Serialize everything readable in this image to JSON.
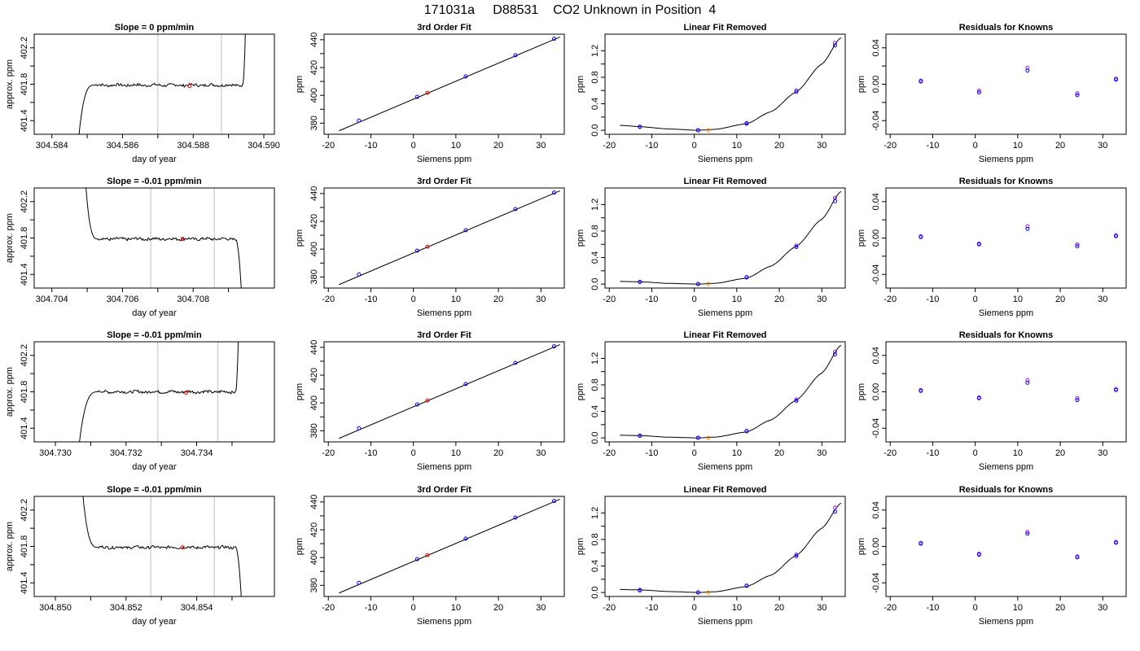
{
  "figure": {
    "title": "171031a     D88531    CO2 Unknown in Position  4"
  },
  "colors": {
    "line": "#000000",
    "known_points": "#0000ff",
    "known_points_alt": "#a020f0",
    "unknown_point": "#ff0000",
    "unknown_removed": "#ff8c00",
    "vlines": "#bebebe"
  },
  "chart_data": [
    {
      "row": 0,
      "col": 0,
      "type": "line",
      "title": "Slope =  0  ppm/min",
      "xlabel": "day of year",
      "ylabel": "approx. ppm",
      "xlim": [
        304.5835,
        304.5903
      ],
      "ylim": [
        401.25,
        402.35
      ],
      "xticks": [
        304.584,
        304.585,
        304.586,
        304.587,
        304.588,
        304.589,
        304.59
      ],
      "xtick_labels": [
        "304.584",
        "",
        "304.586",
        "",
        "304.588",
        "",
        "304.590"
      ],
      "yticks": [
        401.4,
        401.6,
        401.8,
        402.0,
        402.2
      ],
      "ytick_labels": [
        "401.4",
        "",
        "401.8",
        "",
        "402.2"
      ],
      "trace": {
        "start": 304.5847,
        "rise_end": 304.5852,
        "flat_end": 304.5894,
        "end": 304.5895,
        "level": 401.79,
        "direction": "up"
      },
      "vlines": [
        304.587,
        304.5888
      ],
      "marker": {
        "x": 304.5879,
        "y": 401.78
      }
    },
    {
      "row": 0,
      "col": 1,
      "type": "scatter",
      "title": "3rd Order Fit",
      "xlabel": "Siemens ppm",
      "ylabel": "ppm",
      "xlim": [
        -21,
        35.5
      ],
      "ylim": [
        372,
        444
      ],
      "xticks": [
        -20,
        -10,
        0,
        10,
        20,
        30
      ],
      "xtick_labels": [
        "-20",
        "-10",
        "0",
        "10",
        "20",
        "30"
      ],
      "yticks": [
        380,
        390,
        400,
        410,
        420,
        430,
        440
      ],
      "ytick_labels": [
        "380",
        "",
        "400",
        "",
        "420",
        "",
        "440"
      ],
      "line": {
        "x": [
          -17.5,
          34.5
        ],
        "y": [
          374.5,
          442
        ]
      },
      "knowns": {
        "x": [
          -12.8,
          0.9,
          12.3,
          24.0,
          33.1
        ],
        "y": [
          381.8,
          398.9,
          413.6,
          428.8,
          440.7
        ]
      },
      "unknown": {
        "x": 3.3,
        "y": 401.8
      }
    },
    {
      "row": 0,
      "col": 2,
      "type": "scatter",
      "title": "Linear Fit Removed",
      "xlabel": "Siemens ppm",
      "ylabel": "ppm",
      "xlim": [
        -21,
        35.5
      ],
      "ylim": [
        -0.06,
        1.45
      ],
      "xticks": [
        -20,
        -10,
        0,
        10,
        20,
        30
      ],
      "xtick_labels": [
        "-20",
        "-10",
        "0",
        "10",
        "20",
        "30"
      ],
      "yticks": [
        0,
        0.2,
        0.4,
        0.6,
        0.8,
        1.0,
        1.2
      ],
      "ytick_labels": [
        "0.0",
        "",
        "0.4",
        "",
        "0.8",
        "",
        "1.2"
      ],
      "curve": {
        "x": [
          -17.5,
          -12.8,
          -6,
          0.9,
          5,
          12.3,
          18,
          24.0,
          30,
          34.5
        ],
        "y": [
          0.075,
          0.055,
          0.02,
          0.0,
          0.015,
          0.1,
          0.28,
          0.58,
          1.0,
          1.4
        ]
      },
      "knowns": {
        "x": [
          -12.8,
          0.9,
          12.3,
          24.0,
          33.1
        ],
        "y": [
          0.05,
          0.0,
          0.1,
          0.58,
          1.28
        ],
        "y_alt": [
          0.055,
          0.003,
          0.11,
          0.6,
          1.32
        ]
      },
      "unknown": {
        "x": 3.3,
        "y": 0.0
      }
    },
    {
      "row": 0,
      "col": 3,
      "type": "scatter",
      "title": "Residuals for Knowns",
      "xlabel": "Siemens ppm",
      "ylabel": "ppm",
      "xlim": [
        -21,
        35.5
      ],
      "ylim": [
        -0.055,
        0.055
      ],
      "xticks": [
        -20,
        -10,
        0,
        10,
        20,
        30
      ],
      "xtick_labels": [
        "-20",
        "-10",
        "0",
        "10",
        "20",
        "30"
      ],
      "yticks": [
        -0.04,
        -0.02,
        0,
        0.02,
        0.04
      ],
      "ytick_labels": [
        "-0.04",
        "",
        "0.00",
        "",
        "0.04"
      ],
      "knowns": {
        "x": [
          -12.8,
          0.9,
          12.3,
          24.0,
          33.1
        ],
        "y": [
          0.003,
          -0.009,
          0.015,
          -0.012,
          0.005
        ],
        "y_alt": [
          0.004,
          -0.007,
          0.018,
          -0.01,
          0.006
        ]
      }
    },
    {
      "row": 1,
      "col": 0,
      "type": "line",
      "title": "Slope =  -0.01  ppm/min",
      "xlabel": "day of year",
      "ylabel": "approx. ppm",
      "xlim": [
        304.7035,
        304.7103
      ],
      "ylim": [
        401.25,
        402.35
      ],
      "xticks": [
        304.704,
        304.705,
        304.706,
        304.707,
        304.708,
        304.709
      ],
      "xtick_labels": [
        "304.704",
        "",
        "304.706",
        "",
        "304.708",
        ""
      ],
      "yticks": [
        401.4,
        401.6,
        401.8,
        402.0,
        402.2
      ],
      "ytick_labels": [
        "401.4",
        "",
        "401.8",
        "",
        "402.2"
      ],
      "trace": {
        "start": 304.7049,
        "rise_end": 304.7053,
        "flat_end": 304.7092,
        "end": 304.7094,
        "level": 401.79,
        "direction": "down"
      },
      "vlines": [
        304.7068,
        304.7086
      ],
      "marker": {
        "x": 304.7077,
        "y": 401.79
      }
    },
    {
      "row": 1,
      "col": 1,
      "type": "scatter",
      "title": "3rd Order Fit",
      "xlabel": "Siemens ppm",
      "ylabel": "ppm",
      "xlim": [
        -21,
        35.5
      ],
      "ylim": [
        372,
        444
      ],
      "xticks": [
        -20,
        -10,
        0,
        10,
        20,
        30
      ],
      "xtick_labels": [
        "-20",
        "-10",
        "0",
        "10",
        "20",
        "30"
      ],
      "yticks": [
        380,
        390,
        400,
        410,
        420,
        430,
        440
      ],
      "ytick_labels": [
        "380",
        "",
        "400",
        "",
        "420",
        "",
        "440"
      ],
      "line": {
        "x": [
          -17.5,
          34.5
        ],
        "y": [
          374.5,
          442
        ]
      },
      "knowns": {
        "x": [
          -12.8,
          0.9,
          12.3,
          24.0,
          33.1
        ],
        "y": [
          381.8,
          398.9,
          413.6,
          428.8,
          440.7
        ]
      },
      "unknown": {
        "x": 3.3,
        "y": 401.8
      }
    },
    {
      "row": 1,
      "col": 2,
      "type": "scatter",
      "title": "Linear Fit Removed",
      "xlabel": "Siemens ppm",
      "ylabel": "ppm",
      "xlim": [
        -21,
        35.5
      ],
      "ylim": [
        -0.06,
        1.45
      ],
      "xticks": [
        -20,
        -10,
        0,
        10,
        20,
        30
      ],
      "xtick_labels": [
        "-20",
        "-10",
        "0",
        "10",
        "20",
        "30"
      ],
      "yticks": [
        0,
        0.2,
        0.4,
        0.6,
        0.8,
        1.0,
        1.2
      ],
      "ytick_labels": [
        "0.0",
        "",
        "0.4",
        "",
        "0.8",
        "",
        "1.2"
      ],
      "curve": {
        "x": [
          -17.5,
          -12.8,
          -6,
          0.9,
          5,
          12.3,
          18,
          24.0,
          30,
          34.5
        ],
        "y": [
          0.04,
          0.035,
          0.01,
          0.0,
          0.012,
          0.09,
          0.27,
          0.57,
          0.98,
          1.4
        ]
      },
      "knowns": {
        "x": [
          -12.8,
          0.9,
          12.3,
          24.0,
          33.1
        ],
        "y": [
          0.03,
          0.0,
          0.1,
          0.56,
          1.25
        ],
        "y_alt": [
          0.035,
          0.003,
          0.105,
          0.58,
          1.3
        ]
      },
      "unknown": {
        "x": 3.3,
        "y": 0.0
      }
    },
    {
      "row": 1,
      "col": 3,
      "type": "scatter",
      "title": "Residuals for Knowns",
      "xlabel": "Siemens ppm",
      "ylabel": "ppm",
      "xlim": [
        -21,
        35.5
      ],
      "ylim": [
        -0.055,
        0.055
      ],
      "xticks": [
        -20,
        -10,
        0,
        10,
        20,
        30
      ],
      "xtick_labels": [
        "-20",
        "-10",
        "0",
        "10",
        "20",
        "30"
      ],
      "yticks": [
        -0.04,
        -0.02,
        0,
        0.02,
        0.04
      ],
      "ytick_labels": [
        "-0.04",
        "",
        "0.00",
        "",
        "0.04"
      ],
      "knowns": {
        "x": [
          -12.8,
          0.9,
          12.3,
          24.0,
          33.1
        ],
        "y": [
          0.001,
          -0.007,
          0.01,
          -0.009,
          0.002
        ],
        "y_alt": [
          0.002,
          -0.006,
          0.013,
          -0.007,
          0.003
        ]
      }
    },
    {
      "row": 2,
      "col": 0,
      "type": "line",
      "title": "Slope =  -0.01  ppm/min",
      "xlabel": "day of year",
      "ylabel": "approx. ppm",
      "xlim": [
        304.7294,
        304.7362
      ],
      "ylim": [
        401.25,
        402.35
      ],
      "xticks": [
        304.73,
        304.731,
        304.732,
        304.733,
        304.734,
        304.735
      ],
      "xtick_labels": [
        "304.730",
        "",
        "304.732",
        "",
        "304.734",
        ""
      ],
      "yticks": [
        401.4,
        401.6,
        401.8,
        402.0,
        402.2
      ],
      "ytick_labels": [
        "401.4",
        "",
        "401.8",
        "",
        "402.2"
      ],
      "trace": {
        "start": 304.7306,
        "rise_end": 304.7312,
        "flat_end": 304.7351,
        "end": 304.7352,
        "level": 401.8,
        "direction": "up"
      },
      "vlines": [
        304.7329,
        304.7346
      ],
      "marker": {
        "x": 304.7337,
        "y": 401.79
      }
    },
    {
      "row": 2,
      "col": 1,
      "type": "scatter",
      "title": "3rd Order Fit",
      "xlabel": "Siemens ppm",
      "ylabel": "ppm",
      "xlim": [
        -21,
        35.5
      ],
      "ylim": [
        372,
        444
      ],
      "xticks": [
        -20,
        -10,
        0,
        10,
        20,
        30
      ],
      "xtick_labels": [
        "-20",
        "-10",
        "0",
        "10",
        "20",
        "30"
      ],
      "yticks": [
        380,
        390,
        400,
        410,
        420,
        430,
        440
      ],
      "ytick_labels": [
        "380",
        "",
        "400",
        "",
        "420",
        "",
        "440"
      ],
      "line": {
        "x": [
          -17.5,
          34.5
        ],
        "y": [
          374.5,
          442
        ]
      },
      "knowns": {
        "x": [
          -12.8,
          0.9,
          12.3,
          24.0,
          33.1
        ],
        "y": [
          381.8,
          398.9,
          413.6,
          428.8,
          440.7
        ]
      },
      "unknown": {
        "x": 3.3,
        "y": 401.8
      }
    },
    {
      "row": 2,
      "col": 2,
      "type": "scatter",
      "title": "Linear Fit Removed",
      "xlabel": "Siemens ppm",
      "ylabel": "ppm",
      "xlim": [
        -21,
        35.5
      ],
      "ylim": [
        -0.06,
        1.45
      ],
      "xticks": [
        -20,
        -10,
        0,
        10,
        20,
        30
      ],
      "xtick_labels": [
        "-20",
        "-10",
        "0",
        "10",
        "20",
        "30"
      ],
      "yticks": [
        0,
        0.2,
        0.4,
        0.6,
        0.8,
        1.0,
        1.2
      ],
      "ytick_labels": [
        "0.0",
        "",
        "0.4",
        "",
        "0.8",
        "",
        "1.2"
      ],
      "curve": {
        "x": [
          -17.5,
          -12.8,
          -6,
          0.9,
          5,
          12.3,
          18,
          24.0,
          30,
          34.5
        ],
        "y": [
          0.04,
          0.035,
          0.01,
          0.0,
          0.012,
          0.09,
          0.27,
          0.57,
          0.98,
          1.4
        ]
      },
      "knowns": {
        "x": [
          -12.8,
          0.9,
          12.3,
          24.0,
          33.1
        ],
        "y": [
          0.03,
          0.0,
          0.1,
          0.56,
          1.26
        ],
        "y_alt": [
          0.035,
          0.003,
          0.105,
          0.58,
          1.3
        ]
      },
      "unknown": {
        "x": 3.3,
        "y": 0.0
      }
    },
    {
      "row": 2,
      "col": 3,
      "type": "scatter",
      "title": "Residuals for Knowns",
      "xlabel": "Siemens ppm",
      "ylabel": "ppm",
      "xlim": [
        -21,
        35.5
      ],
      "ylim": [
        -0.055,
        0.055
      ],
      "xticks": [
        -20,
        -10,
        0,
        10,
        20,
        30
      ],
      "xtick_labels": [
        "-20",
        "-10",
        "0",
        "10",
        "20",
        "30"
      ],
      "yticks": [
        -0.04,
        -0.02,
        0,
        0.02,
        0.04
      ],
      "ytick_labels": [
        "-0.04",
        "",
        "0.00",
        "",
        "0.04"
      ],
      "knowns": {
        "x": [
          -12.8,
          0.9,
          12.3,
          24.0,
          33.1
        ],
        "y": [
          0.001,
          -0.007,
          0.01,
          -0.009,
          0.002
        ],
        "y_alt": [
          0.002,
          -0.006,
          0.013,
          -0.007,
          0.003
        ]
      }
    },
    {
      "row": 3,
      "col": 0,
      "type": "line",
      "title": "Slope =  -0.01  ppm/min",
      "xlabel": "day of year",
      "ylabel": "approx. ppm",
      "xlim": [
        304.8494,
        304.8562
      ],
      "ylim": [
        401.25,
        402.35
      ],
      "xticks": [
        304.85,
        304.851,
        304.852,
        304.853,
        304.854,
        304.855
      ],
      "xtick_labels": [
        "304.850",
        "",
        "304.852",
        "",
        "304.854",
        ""
      ],
      "yticks": [
        401.4,
        401.6,
        401.8,
        402.0,
        402.2
      ],
      "ytick_labels": [
        "401.4",
        "",
        "401.8",
        "",
        "402.2"
      ],
      "trace": {
        "start": 304.8507,
        "rise_end": 304.8512,
        "flat_end": 304.8551,
        "end": 304.8553,
        "level": 401.79,
        "direction": "down"
      },
      "vlines": [
        304.8527,
        304.8545
      ],
      "marker": {
        "x": 304.8536,
        "y": 401.79
      }
    },
    {
      "row": 3,
      "col": 1,
      "type": "scatter",
      "title": "3rd Order Fit",
      "xlabel": "Siemens ppm",
      "ylabel": "ppm",
      "xlim": [
        -21,
        35.5
      ],
      "ylim": [
        372,
        444
      ],
      "xticks": [
        -20,
        -10,
        0,
        10,
        20,
        30
      ],
      "xtick_labels": [
        "-20",
        "-10",
        "0",
        "10",
        "20",
        "30"
      ],
      "yticks": [
        380,
        390,
        400,
        410,
        420,
        430,
        440
      ],
      "ytick_labels": [
        "380",
        "",
        "400",
        "",
        "420",
        "",
        "440"
      ],
      "line": {
        "x": [
          -17.5,
          34.5
        ],
        "y": [
          374.5,
          442
        ]
      },
      "knowns": {
        "x": [
          -12.8,
          0.9,
          12.3,
          24.0,
          33.1
        ],
        "y": [
          381.8,
          398.9,
          413.6,
          428.8,
          440.7
        ]
      },
      "unknown": {
        "x": 3.3,
        "y": 401.8
      }
    },
    {
      "row": 3,
      "col": 2,
      "type": "scatter",
      "title": "Linear Fit Removed",
      "xlabel": "Siemens ppm",
      "ylabel": "ppm",
      "xlim": [
        -21,
        35.5
      ],
      "ylim": [
        -0.06,
        1.45
      ],
      "xticks": [
        -20,
        -10,
        0,
        10,
        20,
        30
      ],
      "xtick_labels": [
        "-20",
        "-10",
        "0",
        "10",
        "20",
        "30"
      ],
      "yticks": [
        0,
        0.2,
        0.4,
        0.6,
        0.8,
        1.0,
        1.2
      ],
      "ytick_labels": [
        "0.0",
        "",
        "0.4",
        "",
        "0.8",
        "",
        "1.2"
      ],
      "curve": {
        "x": [
          -17.5,
          -12.8,
          -6,
          0.9,
          5,
          12.3,
          18,
          24.0,
          30,
          34.5
        ],
        "y": [
          0.045,
          0.04,
          0.015,
          0.0,
          0.012,
          0.09,
          0.26,
          0.56,
          0.97,
          1.35
        ]
      },
      "knowns": {
        "x": [
          -12.8,
          0.9,
          12.3,
          24.0,
          33.1
        ],
        "y": [
          0.03,
          0.0,
          0.1,
          0.55,
          1.22
        ],
        "y_alt": [
          0.04,
          0.003,
          0.105,
          0.57,
          1.28
        ]
      },
      "unknown": {
        "x": 3.3,
        "y": 0.0
      }
    },
    {
      "row": 3,
      "col": 3,
      "type": "scatter",
      "title": "Residuals for Knowns",
      "xlabel": "Siemens ppm",
      "ylabel": "ppm",
      "xlim": [
        -21,
        35.5
      ],
      "ylim": [
        -0.055,
        0.055
      ],
      "xticks": [
        -20,
        -10,
        0,
        10,
        20,
        30
      ],
      "xtick_labels": [
        "-20",
        "-10",
        "0",
        "10",
        "20",
        "30"
      ],
      "yticks": [
        -0.04,
        -0.02,
        0,
        0.02,
        0.04
      ],
      "ytick_labels": [
        "-0.04",
        "",
        "0.00",
        "",
        "0.04"
      ],
      "knowns": {
        "x": [
          -12.8,
          0.9,
          12.3,
          24.0,
          33.1
        ],
        "y": [
          0.003,
          -0.009,
          0.014,
          -0.012,
          0.004
        ],
        "y_alt": [
          0.004,
          -0.008,
          0.016,
          -0.011,
          0.005
        ]
      }
    }
  ]
}
